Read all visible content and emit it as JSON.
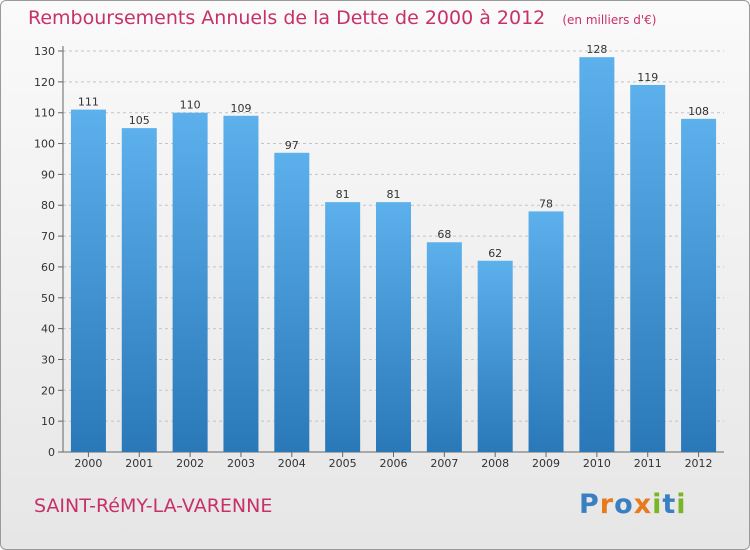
{
  "chart_data": {
    "type": "bar",
    "title": "Remboursements Annuels de la Dette de 2000 à 2012",
    "subtitle": "(en milliers d'€)",
    "categories": [
      "2000",
      "2001",
      "2002",
      "2003",
      "2004",
      "2005",
      "2006",
      "2007",
      "2008",
      "2009",
      "2010",
      "2011",
      "2012"
    ],
    "values": [
      111,
      105,
      110,
      109,
      97,
      81,
      81,
      68,
      62,
      78,
      128,
      119,
      108
    ],
    "ylim": [
      0,
      130
    ],
    "yticks": [
      0,
      10,
      20,
      30,
      40,
      50,
      60,
      70,
      80,
      90,
      100,
      110,
      120,
      130
    ],
    "grid": true,
    "bar_color": "#3a8fd0"
  },
  "footer": {
    "commune": "SAINT-RéMY-LA-VARENNE",
    "logo_letters": [
      {
        "char": "P",
        "color": "#3a7fc0"
      },
      {
        "char": "r",
        "color": "#e87a1e"
      },
      {
        "char": "o",
        "color": "#3a7fc0"
      },
      {
        "char": "x",
        "color": "#e87a1e"
      },
      {
        "char": "i",
        "color": "#7ab526"
      },
      {
        "char": "t",
        "color": "#3a7fc0"
      },
      {
        "char": "i",
        "color": "#7ab526"
      }
    ]
  }
}
